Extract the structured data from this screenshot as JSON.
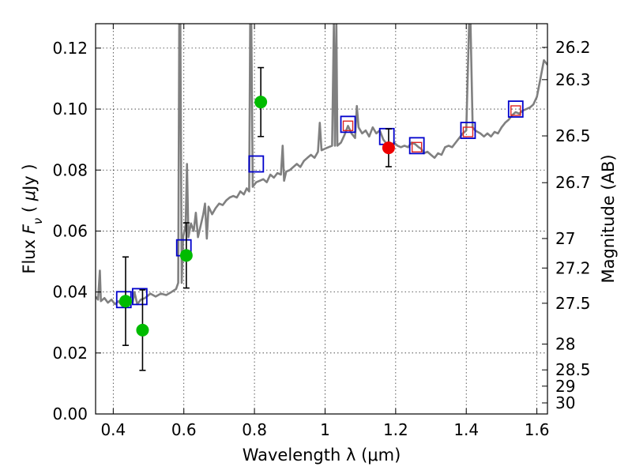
{
  "chart_data": {
    "type": "scatter",
    "title": "",
    "xlabel": "Wavelength  λ (μm)",
    "ylabel": "Flux  F_ν  ( μJy )",
    "ylabel_right": "Magnitude (AB)",
    "xlim": [
      0.35,
      1.63
    ],
    "ylim": [
      0.0,
      0.128
    ],
    "grid": true,
    "x_ticks": [
      0.4,
      0.6,
      0.8,
      1.0,
      1.2,
      1.4,
      1.6
    ],
    "x_tick_labels": [
      "0.4",
      "0.6",
      "0.8",
      "1",
      "1.2",
      "1.4",
      "1.6"
    ],
    "y_ticks": [
      0.0,
      0.02,
      0.04,
      0.06,
      0.08,
      0.1,
      0.12
    ],
    "y_tick_labels": [
      "0.00",
      "0.02",
      "0.04",
      "0.06",
      "0.08",
      "0.10",
      "0.12"
    ],
    "mag_ticks": [
      "26.2",
      "26.3",
      "26.5",
      "26.7",
      "27",
      "27.2",
      "27.5",
      "28",
      "28.5",
      "29",
      "30"
    ],
    "colors": {
      "spectrum": "#808080",
      "model": "#0000cc",
      "model_inner": "#dd2222",
      "detect": "#00bb00",
      "highlight": "#ee0000",
      "errorbar": "#000000"
    },
    "series": [
      {
        "name": "model spectrum",
        "kind": "line",
        "points": [
          [
            0.35,
            0.0385
          ],
          [
            0.357,
            0.0375
          ],
          [
            0.362,
            0.047
          ],
          [
            0.365,
            0.037
          ],
          [
            0.375,
            0.038
          ],
          [
            0.385,
            0.0365
          ],
          [
            0.395,
            0.0375
          ],
          [
            0.405,
            0.036
          ],
          [
            0.415,
            0.037
          ],
          [
            0.425,
            0.0355
          ],
          [
            0.435,
            0.036
          ],
          [
            0.445,
            0.037
          ],
          [
            0.455,
            0.0365
          ],
          [
            0.46,
            0.04
          ],
          [
            0.468,
            0.036
          ],
          [
            0.478,
            0.0375
          ],
          [
            0.49,
            0.038
          ],
          [
            0.505,
            0.0395
          ],
          [
            0.52,
            0.0385
          ],
          [
            0.535,
            0.0395
          ],
          [
            0.55,
            0.039
          ],
          [
            0.565,
            0.04
          ],
          [
            0.578,
            0.041
          ],
          [
            0.584,
            0.043
          ],
          [
            0.587,
            0.128
          ],
          [
            0.59,
            0.128
          ],
          [
            0.594,
            0.043
          ],
          [
            0.598,
            0.058
          ],
          [
            0.605,
            0.062
          ],
          [
            0.609,
            0.082
          ],
          [
            0.613,
            0.058
          ],
          [
            0.62,
            0.0625
          ],
          [
            0.628,
            0.06
          ],
          [
            0.634,
            0.066
          ],
          [
            0.64,
            0.058
          ],
          [
            0.648,
            0.062
          ],
          [
            0.655,
            0.0655
          ],
          [
            0.66,
            0.069
          ],
          [
            0.665,
            0.0575
          ],
          [
            0.67,
            0.068
          ],
          [
            0.68,
            0.0655
          ],
          [
            0.69,
            0.0675
          ],
          [
            0.7,
            0.069
          ],
          [
            0.71,
            0.0685
          ],
          [
            0.72,
            0.07
          ],
          [
            0.73,
            0.071
          ],
          [
            0.74,
            0.0715
          ],
          [
            0.75,
            0.071
          ],
          [
            0.76,
            0.073
          ],
          [
            0.77,
            0.072
          ],
          [
            0.778,
            0.074
          ],
          [
            0.785,
            0.073
          ],
          [
            0.788,
            0.128
          ],
          [
            0.791,
            0.128
          ],
          [
            0.795,
            0.0745
          ],
          [
            0.805,
            0.076
          ],
          [
            0.815,
            0.0765
          ],
          [
            0.825,
            0.077
          ],
          [
            0.835,
            0.076
          ],
          [
            0.845,
            0.0785
          ],
          [
            0.855,
            0.0775
          ],
          [
            0.865,
            0.079
          ],
          [
            0.875,
            0.0785
          ],
          [
            0.88,
            0.088
          ],
          [
            0.884,
            0.0765
          ],
          [
            0.89,
            0.0795
          ],
          [
            0.9,
            0.08
          ],
          [
            0.91,
            0.081
          ],
          [
            0.92,
            0.082
          ],
          [
            0.93,
            0.081
          ],
          [
            0.94,
            0.083
          ],
          [
            0.95,
            0.084
          ],
          [
            0.96,
            0.085
          ],
          [
            0.97,
            0.084
          ],
          [
            0.98,
            0.086
          ],
          [
            0.985,
            0.0955
          ],
          [
            0.99,
            0.0865
          ],
          [
            1.0,
            0.087
          ],
          [
            1.01,
            0.0875
          ],
          [
            1.02,
            0.088
          ],
          [
            1.025,
            0.128
          ],
          [
            1.028,
            0.088
          ],
          [
            1.032,
            0.128
          ],
          [
            1.035,
            0.088
          ],
          [
            1.045,
            0.089
          ],
          [
            1.055,
            0.0915
          ],
          [
            1.065,
            0.0945
          ],
          [
            1.075,
            0.092
          ],
          [
            1.085,
            0.0905
          ],
          [
            1.09,
            0.101
          ],
          [
            1.095,
            0.094
          ],
          [
            1.105,
            0.092
          ],
          [
            1.115,
            0.093
          ],
          [
            1.125,
            0.091
          ],
          [
            1.135,
            0.094
          ],
          [
            1.145,
            0.092
          ],
          [
            1.155,
            0.093
          ],
          [
            1.165,
            0.09
          ],
          [
            1.175,
            0.0885
          ],
          [
            1.185,
            0.0865
          ],
          [
            1.195,
            0.089
          ],
          [
            1.205,
            0.088
          ],
          [
            1.215,
            0.0875
          ],
          [
            1.225,
            0.088
          ],
          [
            1.235,
            0.0875
          ],
          [
            1.245,
            0.089
          ],
          [
            1.255,
            0.0885
          ],
          [
            1.265,
            0.0875
          ],
          [
            1.272,
            0.087
          ],
          [
            1.28,
            0.0855
          ],
          [
            1.29,
            0.086
          ],
          [
            1.3,
            0.085
          ],
          [
            1.31,
            0.084
          ],
          [
            1.32,
            0.0855
          ],
          [
            1.33,
            0.085
          ],
          [
            1.34,
            0.0875
          ],
          [
            1.35,
            0.088
          ],
          [
            1.36,
            0.0875
          ],
          [
            1.37,
            0.089
          ],
          [
            1.38,
            0.0905
          ],
          [
            1.39,
            0.092
          ],
          [
            1.4,
            0.093
          ],
          [
            1.408,
            0.128
          ],
          [
            1.412,
            0.128
          ],
          [
            1.418,
            0.094
          ],
          [
            1.425,
            0.093
          ],
          [
            1.44,
            0.092
          ],
          [
            1.45,
            0.091
          ],
          [
            1.46,
            0.092
          ],
          [
            1.47,
            0.091
          ],
          [
            1.48,
            0.0925
          ],
          [
            1.49,
            0.092
          ],
          [
            1.5,
            0.094
          ],
          [
            1.51,
            0.0955
          ],
          [
            1.52,
            0.0965
          ],
          [
            1.53,
            0.098
          ],
          [
            1.54,
            0.099
          ],
          [
            1.55,
            0.0985
          ],
          [
            1.56,
            0.0995
          ],
          [
            1.57,
            0.1
          ],
          [
            1.58,
            0.1005
          ],
          [
            1.59,
            0.1015
          ],
          [
            1.6,
            0.104
          ],
          [
            1.61,
            0.11
          ],
          [
            1.62,
            0.116
          ],
          [
            1.63,
            0.1145
          ]
        ]
      },
      {
        "name": "model photometry",
        "kind": "open-square",
        "points": [
          [
            0.43,
            0.0375
          ],
          [
            0.475,
            0.0385
          ],
          [
            0.6,
            0.0545
          ],
          [
            0.805,
            0.082
          ],
          [
            1.065,
            0.095
          ],
          [
            1.175,
            0.091
          ],
          [
            1.26,
            0.088
          ],
          [
            1.405,
            0.093
          ],
          [
            1.54,
            0.1
          ]
        ]
      },
      {
        "name": "model photometry (inner)",
        "kind": "inner-square",
        "points": [
          [
            1.065,
            0.0945
          ],
          [
            1.26,
            0.0875
          ],
          [
            1.405,
            0.0925
          ],
          [
            1.54,
            0.0995
          ]
        ]
      },
      {
        "name": "observed photometry",
        "kind": "dot",
        "points": [
          {
            "x": 0.435,
            "y": 0.037,
            "yerr": 0.0145
          },
          {
            "x": 0.483,
            "y": 0.0275,
            "yerr": 0.0132
          },
          {
            "x": 0.607,
            "y": 0.052,
            "yerr": 0.0107
          },
          {
            "x": 0.818,
            "y": 0.1023,
            "yerr": 0.0113
          }
        ]
      },
      {
        "name": "highlighted point",
        "kind": "dot-red",
        "points": [
          {
            "x": 1.18,
            "y": 0.0873,
            "yerr": 0.0062
          }
        ]
      }
    ]
  }
}
